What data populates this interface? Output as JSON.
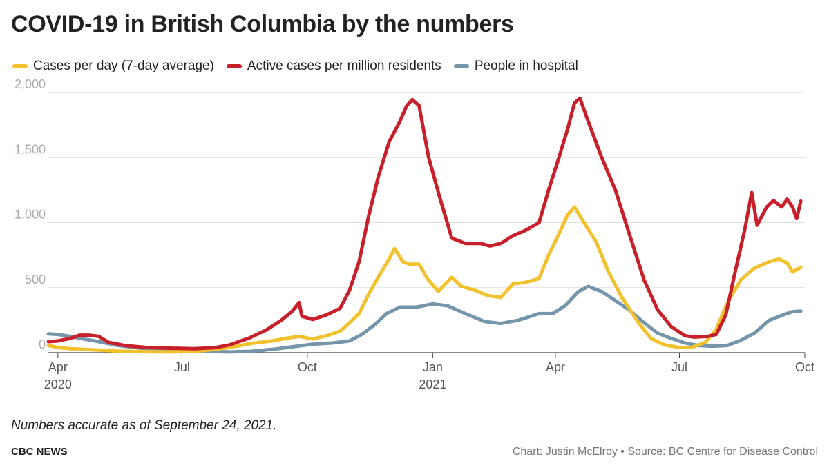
{
  "title": "COVID-19 in British Columbia by the numbers",
  "note": "Numbers accurate as of September 24, 2021.",
  "brand": "CBC NEWS",
  "credit": "Chart: Justin McElroy • Source: BC Centre for Disease Control",
  "colors": {
    "cases": "#f2c12e",
    "active": "#c8202b",
    "hospital": "#7596aa",
    "grid": "#dddddd",
    "tick": "#aaaaaa"
  },
  "chart_data": {
    "type": "line",
    "xlim": [
      "2020-03-25",
      "2021-10-01"
    ],
    "ylim": [
      0,
      2000
    ],
    "grid": true,
    "legend_placement": "top-left",
    "y_ticks": [
      {
        "value": 0,
        "label": "0"
      },
      {
        "value": 500,
        "label": "500"
      },
      {
        "value": 1000,
        "label": "1,000"
      },
      {
        "value": 1500,
        "label": "1,500"
      },
      {
        "value": 2000,
        "label": "2,000"
      }
    ],
    "x_ticks": [
      {
        "date": "2020-04-01",
        "label": "Apr",
        "sublabel": "2020"
      },
      {
        "date": "2020-07-01",
        "label": "Jul",
        "sublabel": ""
      },
      {
        "date": "2020-10-01",
        "label": "Oct",
        "sublabel": ""
      },
      {
        "date": "2021-01-01",
        "label": "Jan",
        "sublabel": "2021"
      },
      {
        "date": "2021-04-01",
        "label": "Apr",
        "sublabel": ""
      },
      {
        "date": "2021-07-01",
        "label": "Jul",
        "sublabel": ""
      },
      {
        "date": "2021-10-01",
        "label": "Oct",
        "sublabel": ""
      }
    ],
    "series": [
      {
        "name": "Active cases per million residents",
        "color_key": "active",
        "points": [
          [
            "2020-03-25",
            85
          ],
          [
            "2020-04-01",
            90
          ],
          [
            "2020-04-10",
            110
          ],
          [
            "2020-04-17",
            135
          ],
          [
            "2020-04-24",
            135
          ],
          [
            "2020-05-01",
            125
          ],
          [
            "2020-05-08",
            80
          ],
          [
            "2020-05-20",
            55
          ],
          [
            "2020-06-05",
            40
          ],
          [
            "2020-06-20",
            35
          ],
          [
            "2020-07-10",
            30
          ],
          [
            "2020-07-25",
            38
          ],
          [
            "2020-08-05",
            60
          ],
          [
            "2020-08-20",
            115
          ],
          [
            "2020-09-01",
            175
          ],
          [
            "2020-09-12",
            250
          ],
          [
            "2020-09-20",
            320
          ],
          [
            "2020-09-25",
            385
          ],
          [
            "2020-09-27",
            280
          ],
          [
            "2020-10-05",
            255
          ],
          [
            "2020-10-15",
            290
          ],
          [
            "2020-10-25",
            340
          ],
          [
            "2020-11-01",
            480
          ],
          [
            "2020-11-08",
            700
          ],
          [
            "2020-11-15",
            1050
          ],
          [
            "2020-11-22",
            1350
          ],
          [
            "2020-11-30",
            1620
          ],
          [
            "2020-12-08",
            1780
          ],
          [
            "2020-12-13",
            1900
          ],
          [
            "2020-12-17",
            1945
          ],
          [
            "2020-12-22",
            1900
          ],
          [
            "2020-12-29",
            1500
          ],
          [
            "2021-01-06",
            1200
          ],
          [
            "2021-01-15",
            880
          ],
          [
            "2021-01-25",
            840
          ],
          [
            "2021-02-05",
            840
          ],
          [
            "2021-02-12",
            820
          ],
          [
            "2021-02-20",
            840
          ],
          [
            "2021-03-01",
            900
          ],
          [
            "2021-03-10",
            940
          ],
          [
            "2021-03-20",
            1000
          ],
          [
            "2021-03-27",
            1250
          ],
          [
            "2021-04-03",
            1480
          ],
          [
            "2021-04-10",
            1720
          ],
          [
            "2021-04-15",
            1920
          ],
          [
            "2021-04-19",
            1955
          ],
          [
            "2021-04-25",
            1780
          ],
          [
            "2021-05-05",
            1500
          ],
          [
            "2021-05-15",
            1250
          ],
          [
            "2021-05-25",
            920
          ],
          [
            "2021-06-05",
            560
          ],
          [
            "2021-06-15",
            330
          ],
          [
            "2021-06-25",
            200
          ],
          [
            "2021-07-05",
            130
          ],
          [
            "2021-07-12",
            120
          ],
          [
            "2021-07-22",
            125
          ],
          [
            "2021-07-28",
            140
          ],
          [
            "2021-08-04",
            290
          ],
          [
            "2021-08-10",
            580
          ],
          [
            "2021-08-18",
            950
          ],
          [
            "2021-08-23",
            1230
          ],
          [
            "2021-08-27",
            980
          ],
          [
            "2021-09-03",
            1120
          ],
          [
            "2021-09-08",
            1170
          ],
          [
            "2021-09-14",
            1120
          ],
          [
            "2021-09-18",
            1180
          ],
          [
            "2021-09-22",
            1120
          ],
          [
            "2021-09-25",
            1030
          ],
          [
            "2021-09-28",
            1165
          ]
        ]
      },
      {
        "name": "Cases per day (7-day average)",
        "color_key": "cases",
        "points": [
          [
            "2020-03-25",
            55
          ],
          [
            "2020-04-01",
            40
          ],
          [
            "2020-04-10",
            30
          ],
          [
            "2020-04-20",
            25
          ],
          [
            "2020-05-01",
            20
          ],
          [
            "2020-05-15",
            12
          ],
          [
            "2020-06-01",
            8
          ],
          [
            "2020-06-20",
            6
          ],
          [
            "2020-07-10",
            10
          ],
          [
            "2020-07-25",
            25
          ],
          [
            "2020-08-05",
            40
          ],
          [
            "2020-08-20",
            70
          ],
          [
            "2020-09-05",
            90
          ],
          [
            "2020-09-15",
            110
          ],
          [
            "2020-09-25",
            125
          ],
          [
            "2020-10-05",
            105
          ],
          [
            "2020-10-15",
            130
          ],
          [
            "2020-10-25",
            165
          ],
          [
            "2020-11-01",
            230
          ],
          [
            "2020-11-08",
            300
          ],
          [
            "2020-11-15",
            450
          ],
          [
            "2020-11-22",
            580
          ],
          [
            "2020-11-30",
            720
          ],
          [
            "2020-12-04",
            800
          ],
          [
            "2020-12-10",
            700
          ],
          [
            "2020-12-15",
            680
          ],
          [
            "2020-12-22",
            680
          ],
          [
            "2020-12-28",
            570
          ],
          [
            "2021-01-05",
            470
          ],
          [
            "2021-01-15",
            580
          ],
          [
            "2021-01-22",
            510
          ],
          [
            "2021-02-01",
            480
          ],
          [
            "2021-02-10",
            440
          ],
          [
            "2021-02-20",
            425
          ],
          [
            "2021-03-01",
            530
          ],
          [
            "2021-03-10",
            540
          ],
          [
            "2021-03-20",
            570
          ],
          [
            "2021-03-27",
            750
          ],
          [
            "2021-04-03",
            900
          ],
          [
            "2021-04-10",
            1060
          ],
          [
            "2021-04-15",
            1120
          ],
          [
            "2021-04-22",
            1000
          ],
          [
            "2021-05-01",
            850
          ],
          [
            "2021-05-10",
            620
          ],
          [
            "2021-05-20",
            420
          ],
          [
            "2021-06-01",
            230
          ],
          [
            "2021-06-10",
            110
          ],
          [
            "2021-06-20",
            60
          ],
          [
            "2021-07-01",
            40
          ],
          [
            "2021-07-10",
            40
          ],
          [
            "2021-07-20",
            80
          ],
          [
            "2021-07-28",
            180
          ],
          [
            "2021-08-05",
            380
          ],
          [
            "2021-08-15",
            560
          ],
          [
            "2021-08-25",
            650
          ],
          [
            "2021-09-05",
            700
          ],
          [
            "2021-09-12",
            720
          ],
          [
            "2021-09-18",
            690
          ],
          [
            "2021-09-22",
            620
          ],
          [
            "2021-09-25",
            640
          ],
          [
            "2021-09-28",
            655
          ]
        ]
      },
      {
        "name": "People in hospital",
        "color_key": "hospital",
        "points": [
          [
            "2020-03-25",
            145
          ],
          [
            "2020-04-01",
            140
          ],
          [
            "2020-04-10",
            125
          ],
          [
            "2020-04-20",
            105
          ],
          [
            "2020-05-01",
            85
          ],
          [
            "2020-05-15",
            55
          ],
          [
            "2020-06-01",
            35
          ],
          [
            "2020-06-20",
            20
          ],
          [
            "2020-07-10",
            12
          ],
          [
            "2020-07-25",
            8
          ],
          [
            "2020-08-05",
            6
          ],
          [
            "2020-08-20",
            10
          ],
          [
            "2020-09-05",
            25
          ],
          [
            "2020-09-20",
            45
          ],
          [
            "2020-10-05",
            65
          ],
          [
            "2020-10-20",
            75
          ],
          [
            "2020-11-01",
            90
          ],
          [
            "2020-11-10",
            140
          ],
          [
            "2020-11-20",
            220
          ],
          [
            "2020-11-28",
            300
          ],
          [
            "2020-12-08",
            350
          ],
          [
            "2020-12-20",
            350
          ],
          [
            "2021-01-01",
            375
          ],
          [
            "2021-01-12",
            360
          ],
          [
            "2021-01-25",
            300
          ],
          [
            "2021-02-08",
            240
          ],
          [
            "2021-02-20",
            225
          ],
          [
            "2021-03-05",
            250
          ],
          [
            "2021-03-20",
            300
          ],
          [
            "2021-03-30",
            300
          ],
          [
            "2021-04-08",
            360
          ],
          [
            "2021-04-18",
            470
          ],
          [
            "2021-04-25",
            510
          ],
          [
            "2021-05-05",
            470
          ],
          [
            "2021-05-15",
            400
          ],
          [
            "2021-05-25",
            330
          ],
          [
            "2021-06-05",
            230
          ],
          [
            "2021-06-15",
            150
          ],
          [
            "2021-06-25",
            110
          ],
          [
            "2021-07-05",
            75
          ],
          [
            "2021-07-15",
            55
          ],
          [
            "2021-07-25",
            50
          ],
          [
            "2021-08-05",
            55
          ],
          [
            "2021-08-15",
            95
          ],
          [
            "2021-08-25",
            150
          ],
          [
            "2021-09-05",
            250
          ],
          [
            "2021-09-15",
            290
          ],
          [
            "2021-09-22",
            315
          ],
          [
            "2021-09-28",
            320
          ]
        ]
      }
    ]
  }
}
